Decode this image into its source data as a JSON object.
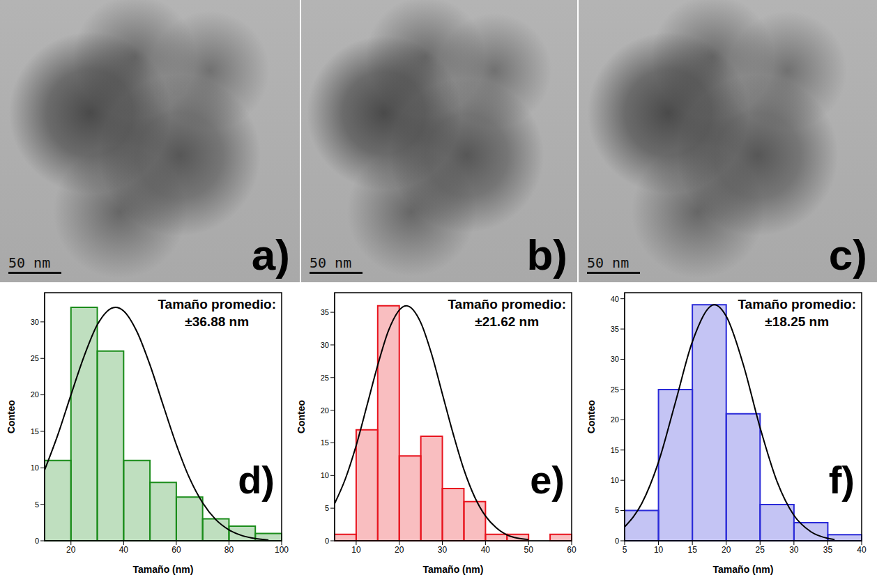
{
  "micrographs": [
    {
      "panel": "a)",
      "scale_bar": "50 nm"
    },
    {
      "panel": "b)",
      "scale_bar": "50 nm"
    },
    {
      "panel": "c)",
      "scale_bar": "50 nm"
    }
  ],
  "chart_data": [
    {
      "type": "histogram",
      "panel": "d)",
      "annotations": [
        "Tamaño promedio:",
        "±36.88 nm"
      ],
      "x_label": "Tamaño (nm)",
      "y_label": "Conteo",
      "bins": [
        10,
        20,
        30,
        40,
        50,
        60,
        70,
        80,
        90,
        100
      ],
      "counts": [
        11,
        32,
        26,
        11,
        8,
        6,
        3,
        2,
        1
      ],
      "color": "#1a8c1a",
      "xlim": [
        10,
        100
      ],
      "xticks": [
        20,
        40,
        60,
        80,
        100
      ],
      "ylim": [
        0,
        34
      ],
      "yticks": [
        0,
        5,
        10,
        15,
        20,
        25,
        30
      ],
      "fit": {
        "type": "line",
        "color": "#000000",
        "x": [
          10,
          15,
          20,
          25,
          30,
          36.88,
          40,
          45,
          50,
          55,
          60,
          65,
          70,
          75,
          80,
          85,
          90,
          95
        ],
        "values": [
          9.7,
          14.5,
          20.0,
          25.3,
          29.6,
          32,
          31.5,
          28.7,
          24.1,
          18.6,
          13.2,
          8.6,
          5.2,
          2.9,
          1.5,
          0.7,
          0.3,
          0.1
        ]
      }
    },
    {
      "type": "histogram",
      "panel": "e)",
      "annotations": [
        "Tamaño promedio:",
        "±21.62 nm"
      ],
      "x_label": "Tamaño (nm)",
      "y_label": "Conteo",
      "bins": [
        5,
        10,
        15,
        20,
        25,
        30,
        35,
        40,
        45,
        50,
        55,
        60
      ],
      "counts": [
        1,
        17,
        36,
        13,
        16,
        8,
        6,
        1,
        1,
        0,
        1
      ],
      "color": "#e8141e",
      "xlim": [
        5,
        60
      ],
      "xticks": [
        10,
        20,
        30,
        40,
        50,
        60
      ],
      "ylim": [
        0,
        38
      ],
      "yticks": [
        0,
        5,
        10,
        15,
        20,
        25,
        30,
        35
      ],
      "fit": {
        "type": "line",
        "color": "#000000",
        "x": [
          5,
          7.5,
          10,
          12.5,
          15,
          17.5,
          21.62,
          25,
          27.5,
          30,
          32.5,
          35,
          37.5,
          40,
          42.5,
          45,
          47.5,
          50
        ],
        "values": [
          5.7,
          9.5,
          14.6,
          20.7,
          26.9,
          32.2,
          36,
          33.4,
          28.6,
          22.5,
          16.4,
          10.9,
          6.7,
          3.8,
          2.0,
          0.9,
          0.4,
          0.2
        ]
      }
    },
    {
      "type": "histogram",
      "panel": "f)",
      "annotations": [
        "Tamaño promedio:",
        "±18.25 nm"
      ],
      "x_label": "Tamaño (nm)",
      "y_label": "Conteo",
      "bins": [
        5,
        10,
        15,
        20,
        25,
        30,
        35,
        40
      ],
      "counts": [
        5,
        25,
        39,
        21,
        6,
        3,
        1
      ],
      "color": "#2a2ad8",
      "xlim": [
        5,
        40
      ],
      "xticks": [
        5,
        10,
        15,
        20,
        25,
        30,
        35,
        40
      ],
      "ylim": [
        0,
        41
      ],
      "yticks": [
        0,
        5,
        10,
        15,
        20,
        25,
        30,
        35,
        40
      ],
      "fit": {
        "type": "line",
        "color": "#000000",
        "x": [
          5,
          7.5,
          10,
          12.5,
          15,
          18.25,
          20,
          22.5,
          25,
          27.5,
          30,
          32.5,
          35,
          36
        ],
        "values": [
          2.3,
          6.1,
          13.0,
          22.9,
          32.9,
          39,
          37.1,
          29.2,
          18.7,
          9.8,
          4.2,
          1.5,
          0.4,
          0.2
        ]
      }
    }
  ]
}
